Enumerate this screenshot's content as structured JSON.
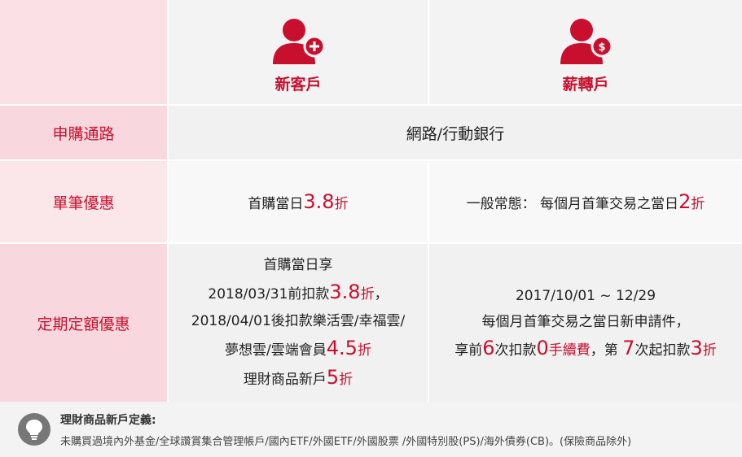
{
  "header": {
    "new_customer": {
      "icon": "person-plus-icon",
      "label": "新客戶"
    },
    "new_transfer": {
      "icon": "person-dollar-icon",
      "label": "薪轉戶"
    }
  },
  "rows": {
    "channel": {
      "label": "申購通路",
      "value": "網路/行動銀行"
    },
    "single": {
      "label": "單筆優惠",
      "new_text": "首購當日",
      "new_discount": "3.8",
      "new_unit": "折",
      "transfer_text": "一般常態： 每個月首筆交易之當日",
      "transfer_discount": "2",
      "transfer_unit": "折"
    },
    "regular": {
      "label": "定期定額優惠",
      "new_line1": "首購當日享",
      "new_line2_text": "2018/03/31前扣款",
      "new_line2_discount": "3.8",
      "new_line2_unit": "折",
      "new_line2_tail": "，",
      "new_line3": "2018/04/01後扣款樂活雲/幸福雲/",
      "new_line4_text": "夢想雲/雲端會員",
      "new_line4_discount": "4.5",
      "new_line4_unit": "折",
      "new_line5_text": "理財商品新戶",
      "new_line5_discount": "5",
      "new_line5_unit": "折",
      "transfer_line1": "2017/10/01 ~ 12/29",
      "transfer_line2": "每個月首筆交易之當日新申請件，",
      "transfer_line3_a": "享前",
      "transfer_line3_b": "6",
      "transfer_line3_c": "次扣款",
      "transfer_line3_d": "0",
      "transfer_line3_e": "手續費",
      "transfer_line3_f": "，第 ",
      "transfer_line3_g": "7",
      "transfer_line3_h": "次起扣款",
      "transfer_line3_i": "3",
      "transfer_line3_j": "折"
    }
  },
  "footer": {
    "icon": "lightbulb-icon",
    "title": "理財商品新戶定義:",
    "text": "未購買過境內外基金/全球讚賞集合管理帳戶/國內ETF/外國ETF/外國股票 /外國特別股(PS)/海外債券(CB)。(保險商品除外)"
  },
  "colors": {
    "accent": "#c8102e",
    "label_bg": "#f9d7de",
    "header_bg": "#f3f3f3"
  }
}
